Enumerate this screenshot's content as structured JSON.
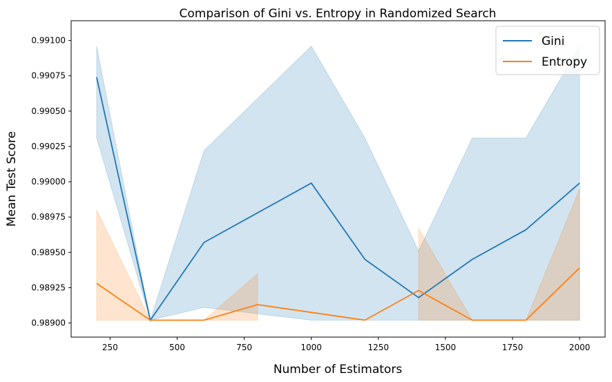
{
  "chart_data": {
    "type": "line",
    "title": "Comparison of Gini vs. Entropy in Randomized Search",
    "xlabel": "Number of Estimators",
    "ylabel": "Mean Test Score",
    "xlim": [
      105,
      2095
    ],
    "ylim": [
      0.9889,
      0.99114
    ],
    "xticks": [
      250,
      500,
      750,
      1000,
      1250,
      1500,
      1750,
      2000
    ],
    "xtick_labels": [
      "250",
      "500",
      "750",
      "1000",
      "1250",
      "1500",
      "1750",
      "2000"
    ],
    "yticks": [
      0.989,
      0.98925,
      0.9895,
      0.98975,
      0.99,
      0.99025,
      0.9905,
      0.99075,
      0.991
    ],
    "ytick_labels": [
      "0.98900",
      "0.98925",
      "0.98950",
      "0.98975",
      "0.99000",
      "0.99025",
      "0.99050",
      "0.99075",
      "0.99100"
    ],
    "grid": false,
    "legend_position": "top-right",
    "series": [
      {
        "name": "Gini",
        "color": "#1f77b4",
        "points": [
          {
            "x": 200,
            "y": 0.99074
          },
          {
            "x": 400,
            "y": 0.98902
          },
          {
            "x": 600,
            "y": 0.98957
          },
          {
            "x": 1000,
            "y": 0.98999
          },
          {
            "x": 1200,
            "y": 0.98945
          },
          {
            "x": 1400,
            "y": 0.98918
          },
          {
            "x": 1600,
            "y": 0.98945
          },
          {
            "x": 1800,
            "y": 0.98966
          },
          {
            "x": 2000,
            "y": 0.98999
          }
        ],
        "band": [
          {
            "x": 200,
            "lo": 0.99031,
            "hi": 0.99096
          },
          {
            "x": 400,
            "lo": 0.98902,
            "hi": 0.98902
          },
          {
            "x": 600,
            "lo": 0.98911,
            "hi": 0.99022
          },
          {
            "x": 1000,
            "lo": 0.98902,
            "hi": 0.99096
          },
          {
            "x": 1200,
            "lo": 0.98902,
            "hi": 0.99031
          },
          {
            "x": 1400,
            "lo": 0.98902,
            "hi": 0.98951
          },
          {
            "x": 1600,
            "lo": 0.98902,
            "hi": 0.99031
          },
          {
            "x": 1800,
            "lo": 0.98902,
            "hi": 0.99031
          },
          {
            "x": 2000,
            "lo": 0.98902,
            "hi": 0.99096
          }
        ]
      },
      {
        "name": "Entropy",
        "color": "#ff7f0e",
        "points": [
          {
            "x": 200,
            "y": 0.98928
          },
          {
            "x": 400,
            "y": 0.98902
          },
          {
            "x": 600,
            "y": 0.98902
          },
          {
            "x": 800,
            "y": 0.98913
          },
          {
            "x": 1200,
            "y": 0.98902
          },
          {
            "x": 1400,
            "y": 0.98923
          },
          {
            "x": 1600,
            "y": 0.98902
          },
          {
            "x": 1800,
            "y": 0.98902
          },
          {
            "x": 2000,
            "y": 0.98939
          }
        ],
        "band_segments": [
          [
            {
              "x": 200,
              "lo": 0.98902,
              "hi": 0.9898
            },
            {
              "x": 400,
              "lo": 0.98902,
              "hi": 0.98902
            },
            {
              "x": 600,
              "lo": 0.98902,
              "hi": 0.98902
            },
            {
              "x": 800,
              "lo": 0.98902,
              "hi": 0.98935
            }
          ],
          [
            {
              "x": 1400,
              "lo": 0.98902,
              "hi": 0.98967
            },
            {
              "x": 1600,
              "lo": 0.98902,
              "hi": 0.98902
            },
            {
              "x": 1800,
              "lo": 0.98902,
              "hi": 0.98902
            },
            {
              "x": 2000,
              "lo": 0.98902,
              "hi": 0.98995
            }
          ]
        ]
      }
    ]
  }
}
